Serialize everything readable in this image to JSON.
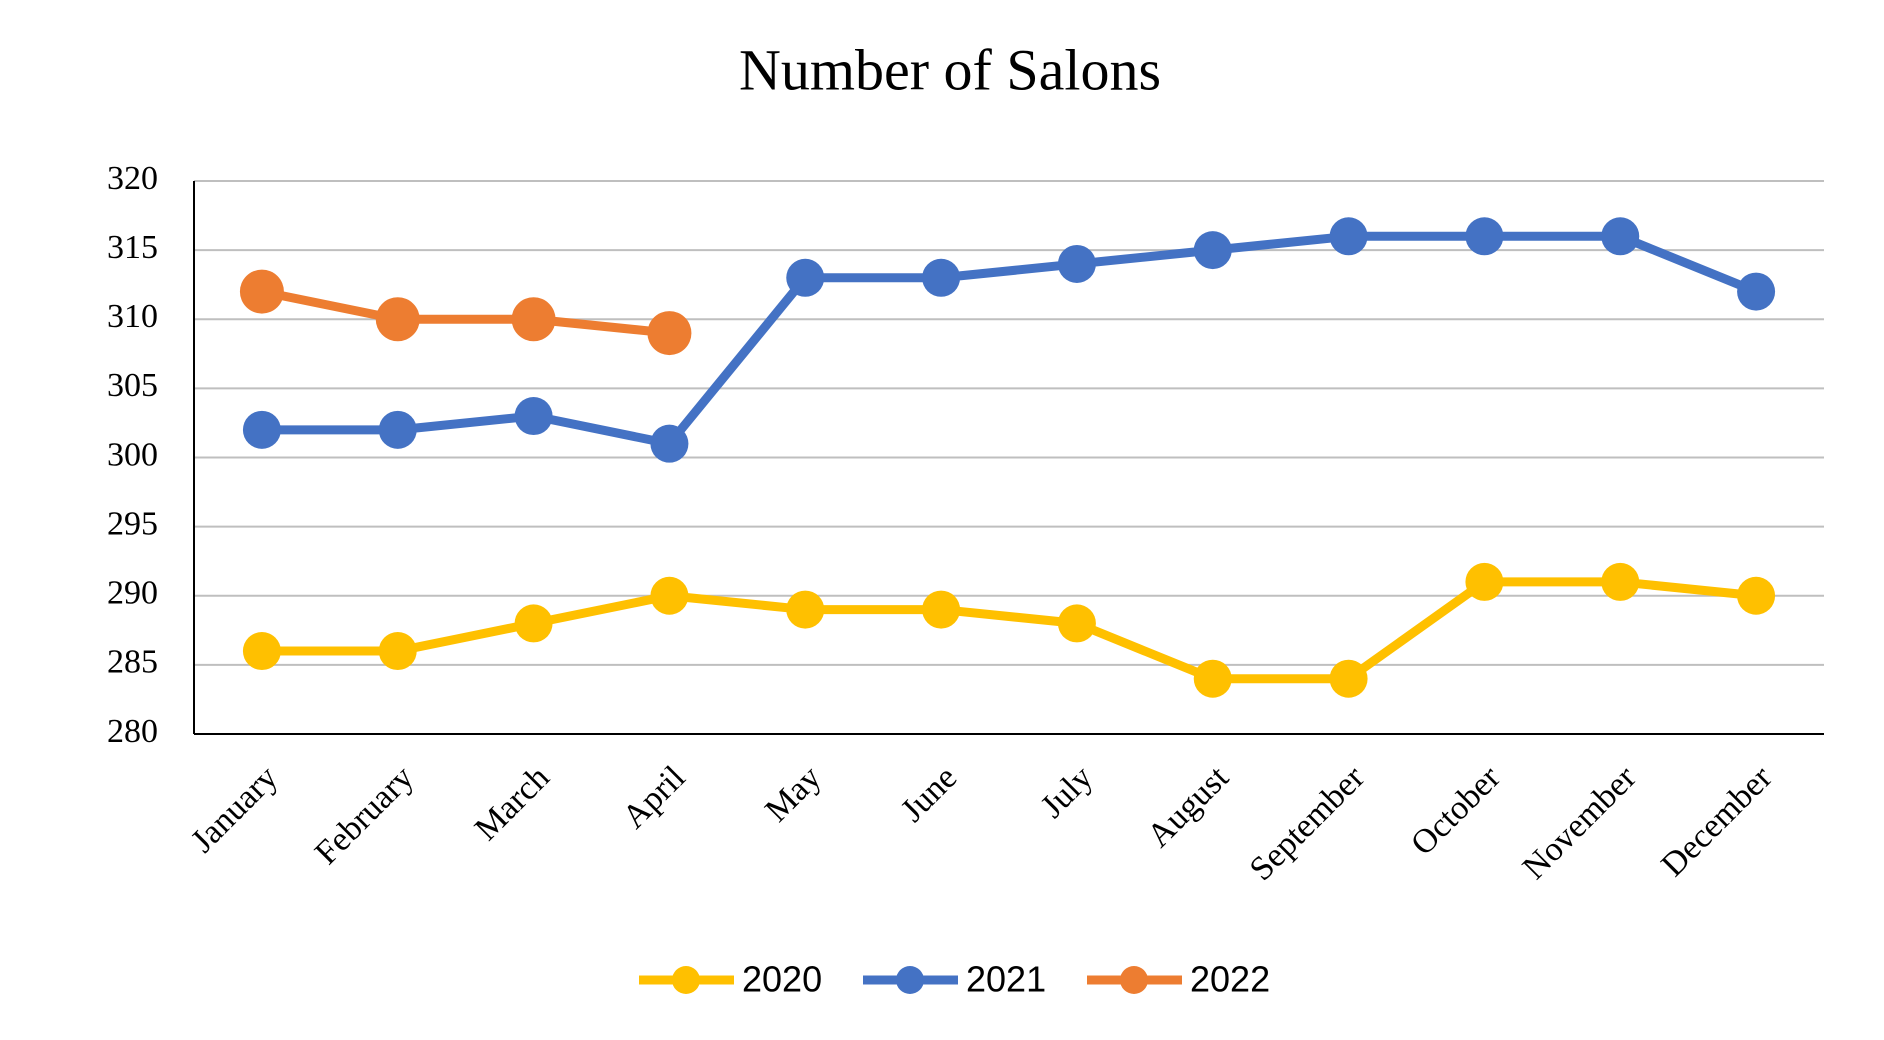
{
  "chart_data": {
    "type": "line",
    "title": "Number of Salons",
    "categories": [
      "January",
      "February",
      "March",
      "April",
      "May",
      "June",
      "July",
      "August",
      "September",
      "October",
      "November",
      "December"
    ],
    "series": [
      {
        "name": "2020",
        "color": "#FFC000",
        "values": [
          286,
          286,
          288,
          290,
          289,
          289,
          288,
          284,
          284,
          291,
          291,
          290
        ]
      },
      {
        "name": "2021",
        "color": "#4472C4",
        "values": [
          302,
          302,
          303,
          301,
          313,
          313,
          314,
          315,
          316,
          316,
          316,
          312
        ]
      },
      {
        "name": "2022",
        "color": "#ED7D31",
        "values": [
          312,
          310,
          310,
          309,
          null,
          null,
          null,
          null,
          null,
          null,
          null,
          null
        ]
      }
    ],
    "ylim": [
      280,
      320
    ],
    "yticks": [
      280,
      285,
      290,
      295,
      300,
      305,
      310,
      315,
      320
    ],
    "grid": true,
    "legend": "bottom"
  }
}
